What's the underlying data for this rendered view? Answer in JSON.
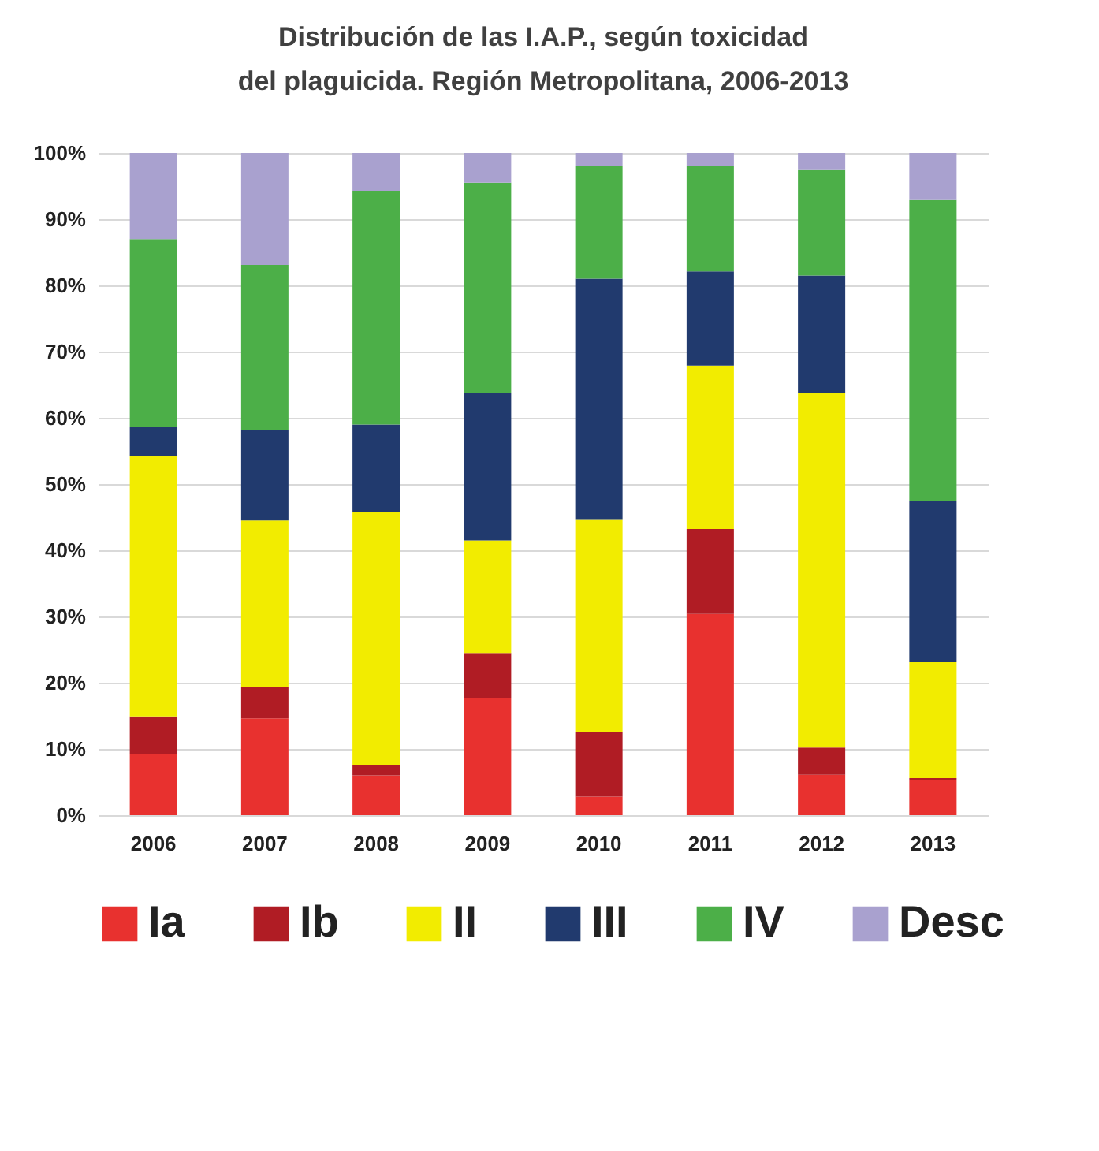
{
  "chart_data": {
    "type": "bar",
    "stacked": true,
    "title": "Distribución de las I.A.P., según toxicidad  del plaguicida. Región Metropolitana, 2006-2013",
    "categories": [
      "2006",
      "2007",
      "2008",
      "2009",
      "2010",
      "2011",
      "2012",
      "2013"
    ],
    "series": [
      {
        "name": "Ia",
        "color": "#e8312f",
        "values": [
          9.2,
          14.6,
          6.0,
          17.7,
          2.8,
          30.4,
          6.1,
          5.3
        ]
      },
      {
        "name": "Ib",
        "color": "#b01c24",
        "values": [
          5.7,
          4.8,
          1.5,
          6.8,
          9.8,
          12.8,
          4.1,
          0.3
        ]
      },
      {
        "name": "II",
        "color": "#f2ec00",
        "values": [
          39.4,
          25.1,
          38.2,
          17.0,
          32.1,
          24.7,
          53.5,
          17.5
        ]
      },
      {
        "name": "III",
        "color": "#213a6e",
        "values": [
          4.3,
          13.7,
          13.3,
          22.2,
          36.3,
          14.2,
          17.8,
          24.3
        ]
      },
      {
        "name": "IV",
        "color": "#4caf48",
        "values": [
          28.4,
          24.9,
          35.3,
          31.8,
          17.0,
          15.9,
          15.9,
          45.5
        ]
      },
      {
        "name": "Desc",
        "color": "#a9a1cf",
        "values": [
          13.0,
          16.9,
          5.7,
          4.5,
          2.0,
          2.0,
          2.6,
          7.1
        ]
      }
    ],
    "ylim": [
      0,
      100
    ],
    "yticks": [
      {
        "value": 0,
        "label": "0%"
      },
      {
        "value": 10,
        "label": "10%"
      },
      {
        "value": 20,
        "label": "20%"
      },
      {
        "value": 30,
        "label": "30%"
      },
      {
        "value": 40,
        "label": "40%"
      },
      {
        "value": 50,
        "label": "50%"
      },
      {
        "value": 60,
        "label": "60%"
      },
      {
        "value": 70,
        "label": "70%"
      },
      {
        "value": 80,
        "label": "80%"
      },
      {
        "value": 90,
        "label": "90%"
      },
      {
        "value": 100,
        "label": "100%"
      }
    ],
    "grid": "y",
    "legend": "bottom"
  }
}
